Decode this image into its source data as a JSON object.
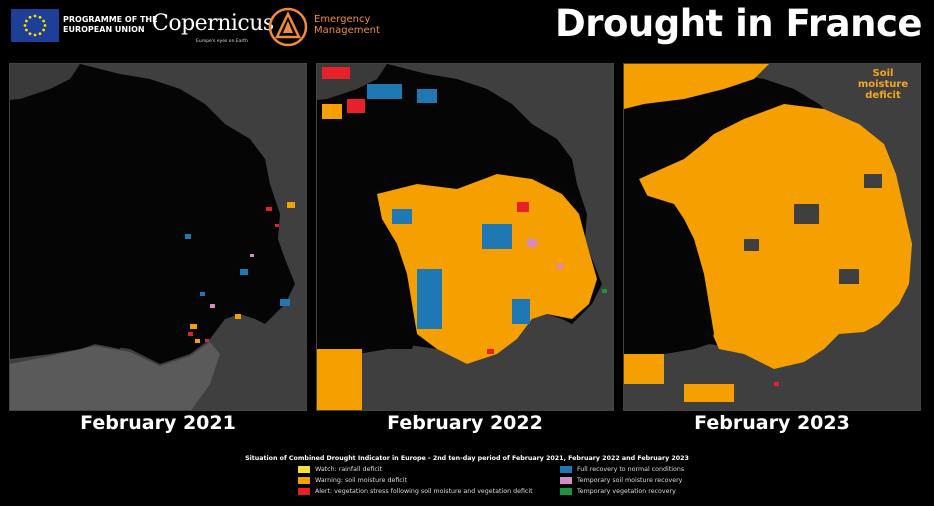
{
  "header": {
    "eu_text": "PROGRAMME OF THE EUROPEAN UNION",
    "copernicus_brand": "Copernicus",
    "copernicus_tagline": "Europe's eyes on Earth",
    "em_text": "Emergency Management",
    "title": "Drought in France"
  },
  "panels": [
    {
      "label": "February 2021"
    },
    {
      "label": "February 2022"
    },
    {
      "label": "February 2023",
      "annotation": "Soil moisture deficit"
    }
  ],
  "legend": {
    "title": "Situation of Combined Drought Indicator in Europe - 2nd ten-day period of February 2021, February 2022 and February 2023",
    "items": [
      {
        "label": "Watch: rainfall deficit",
        "color": "#f5e135"
      },
      {
        "label": "Warning: soil moisture deficit",
        "color": "#f5a000"
      },
      {
        "label": "Alert: vegetation stress following soil moisture and vegetation deficit",
        "color": "#e8202a"
      },
      {
        "label": "Full recovery to normal conditions",
        "color": "#1f78b4"
      },
      {
        "label": "Temporary soil moisture recovery",
        "color": "#d58bc4"
      },
      {
        "label": "Temporary vegetation recovery",
        "color": "#1a9641"
      }
    ]
  },
  "colors": {
    "sea": "#050505",
    "land": "#3f3f3f",
    "warning": "#f5a000",
    "alert": "#e8202a",
    "recovery": "#1f78b4"
  }
}
